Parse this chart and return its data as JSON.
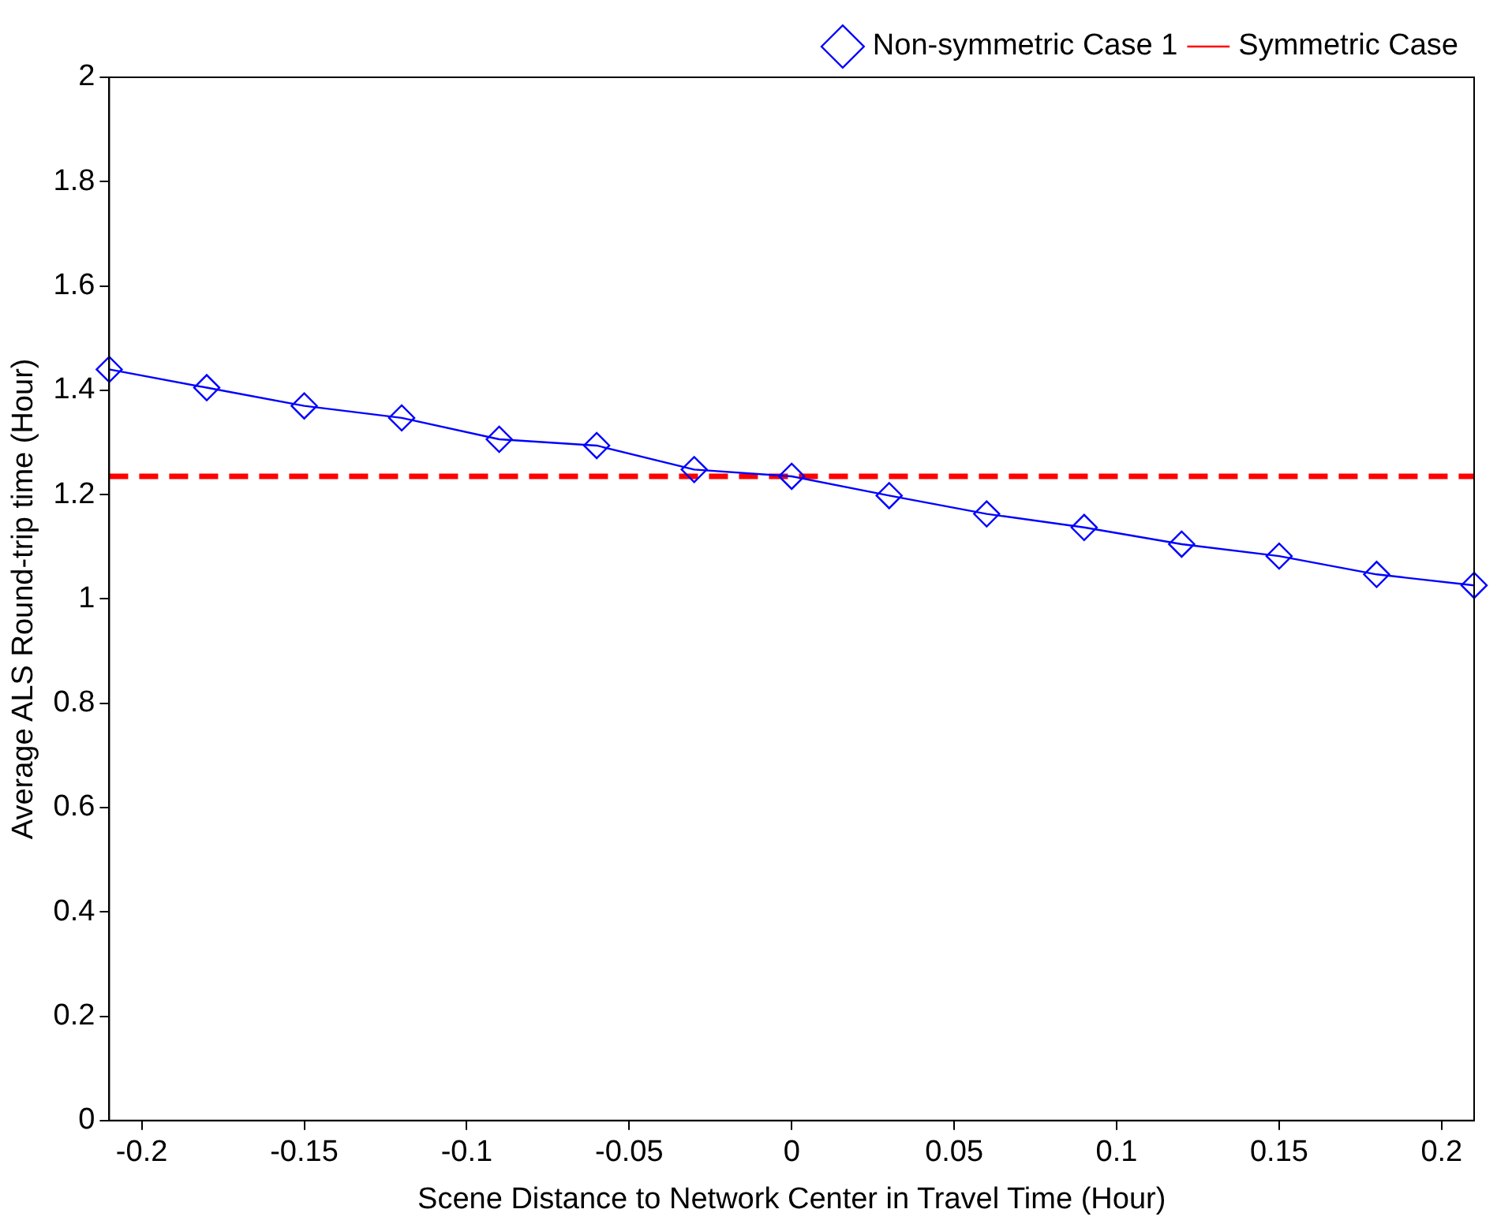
{
  "chart_data": {
    "type": "line",
    "xlabel": "Scene Distance to Network Center in Travel Time (Hour)",
    "ylabel": "Average ALS Round-trip time (Hour)",
    "xlim": [
      -0.21,
      0.21
    ],
    "xticks": [
      -0.2,
      -0.15,
      -0.1,
      -0.05,
      0,
      0.05,
      0.1,
      0.15,
      0.2
    ],
    "ylim": [
      0,
      2
    ],
    "yticks": [
      0,
      0.2,
      0.4,
      0.6,
      0.8,
      1,
      1.2,
      1.4,
      1.6,
      1.8,
      2
    ],
    "legend": "top right",
    "grid": false,
    "series": [
      {
        "name": "Non-symmetric Case 1",
        "color": "#0000ff",
        "marker": "diamond",
        "line_style": "solid",
        "x": [
          -0.21,
          -0.18,
          -0.15,
          -0.12,
          -0.09,
          -0.06,
          -0.03,
          0,
          0.03,
          0.06,
          0.09,
          0.12,
          0.15,
          0.18,
          0.21
        ],
        "values": [
          1.44,
          1.405,
          1.37,
          1.347,
          1.306,
          1.294,
          1.248,
          1.235,
          1.198,
          1.163,
          1.137,
          1.105,
          1.082,
          1.047,
          1.026
        ]
      },
      {
        "name": "Symmetric Case",
        "color": "#ff0000",
        "marker": "none",
        "line_style": "dashed",
        "x": [
          -0.21,
          0.21
        ],
        "values": [
          1.235,
          1.235
        ]
      }
    ]
  }
}
